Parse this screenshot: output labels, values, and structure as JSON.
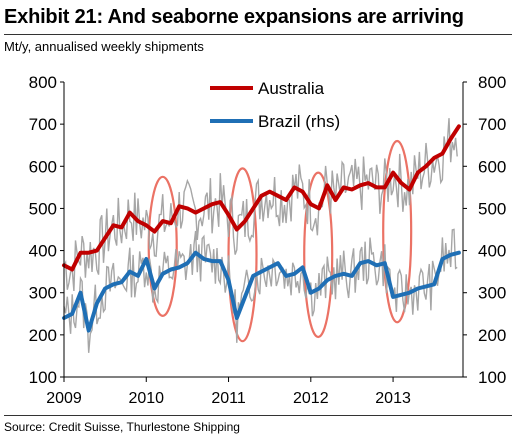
{
  "header": {
    "title": "Exhibit 21: And seaborne expansions are arriving",
    "subtitle": "Mt/y, annualised weekly shipments"
  },
  "footer": {
    "source": "Source: Credit Suisse, Thurlestone Shipping"
  },
  "chart_data": {
    "type": "line",
    "title": "Exhibit 21: And seaborne expansions are arriving",
    "subtitle": "Mt/y, annualised weekly shipments",
    "xlabel": "",
    "ylabel": "",
    "xlim": [
      2009.0,
      2013.85
    ],
    "x_ticks": [
      2009,
      2010,
      2011,
      2012,
      2013
    ],
    "x_tick_labels": [
      "2009",
      "2010",
      "2011",
      "2012",
      "2013"
    ],
    "ylim": [
      100,
      800
    ],
    "y_ticks": [
      100,
      200,
      300,
      400,
      500,
      600,
      700,
      800
    ],
    "y_tick_labels": [
      "100",
      "200",
      "300",
      "400",
      "500",
      "600",
      "700",
      "800"
    ],
    "y2lim": [
      100,
      800
    ],
    "y2_ticks": [
      100,
      200,
      300,
      400,
      500,
      600,
      700,
      800
    ],
    "y2_tick_labels": [
      "100",
      "200",
      "300",
      "400",
      "500",
      "600",
      "700",
      "800"
    ],
    "legend_position": "top-center",
    "grid": false,
    "series": [
      {
        "name": "Australia",
        "axis": "left",
        "color": "#c00000",
        "x": [
          2009.0,
          2009.1,
          2009.2,
          2009.3,
          2009.4,
          2009.5,
          2009.6,
          2009.7,
          2009.8,
          2009.9,
          2010.0,
          2010.1,
          2010.2,
          2010.3,
          2010.4,
          2010.5,
          2010.6,
          2010.7,
          2010.8,
          2010.9,
          2011.0,
          2011.1,
          2011.2,
          2011.3,
          2011.4,
          2011.5,
          2011.6,
          2011.7,
          2011.8,
          2011.9,
          2012.0,
          2012.1,
          2012.2,
          2012.3,
          2012.4,
          2012.5,
          2012.6,
          2012.7,
          2012.8,
          2012.9,
          2013.0,
          2013.1,
          2013.2,
          2013.3,
          2013.4,
          2013.5,
          2013.6,
          2013.7,
          2013.8
        ],
        "values": [
          365,
          355,
          395,
          395,
          400,
          430,
          460,
          455,
          490,
          470,
          460,
          445,
          470,
          465,
          505,
          500,
          490,
          500,
          510,
          515,
          485,
          450,
          470,
          500,
          530,
          540,
          530,
          520,
          550,
          540,
          510,
          500,
          555,
          520,
          550,
          545,
          555,
          560,
          550,
          550,
          585,
          560,
          545,
          585,
          600,
          620,
          630,
          665,
          695
        ]
      },
      {
        "name": "Brazil (rhs)",
        "axis": "right",
        "color": "#1f6fb5",
        "x": [
          2009.0,
          2009.1,
          2009.2,
          2009.3,
          2009.4,
          2009.5,
          2009.6,
          2009.7,
          2009.8,
          2009.9,
          2010.0,
          2010.1,
          2010.2,
          2010.3,
          2010.4,
          2010.5,
          2010.6,
          2010.7,
          2010.8,
          2010.9,
          2011.0,
          2011.1,
          2011.2,
          2011.3,
          2011.4,
          2011.5,
          2011.6,
          2011.7,
          2011.8,
          2011.9,
          2012.0,
          2012.1,
          2012.2,
          2012.3,
          2012.4,
          2012.5,
          2012.6,
          2012.7,
          2012.8,
          2012.9,
          2013.0,
          2013.1,
          2013.2,
          2013.3,
          2013.4,
          2013.5,
          2013.6,
          2013.7,
          2013.8
        ],
        "values": [
          240,
          250,
          300,
          210,
          275,
          310,
          320,
          325,
          350,
          340,
          380,
          310,
          345,
          355,
          360,
          370,
          395,
          380,
          375,
          375,
          330,
          240,
          290,
          340,
          350,
          360,
          370,
          340,
          345,
          360,
          300,
          310,
          330,
          340,
          345,
          340,
          370,
          375,
          365,
          370,
          290,
          295,
          300,
          310,
          315,
          320,
          380,
          390,
          395
        ]
      }
    ],
    "background_series_color": "#a6a6a6",
    "annotations": [
      {
        "type": "ellipse",
        "color": "#e8594a",
        "x_center": 2010.2,
        "x_halfwidth": 0.17,
        "y_center": 410,
        "y_halfwidth": 165
      },
      {
        "type": "ellipse",
        "color": "#e8594a",
        "x_center": 2011.17,
        "x_halfwidth": 0.17,
        "y_center": 390,
        "y_halfwidth": 205
      },
      {
        "type": "ellipse",
        "color": "#e8594a",
        "x_center": 2012.09,
        "x_halfwidth": 0.17,
        "y_center": 390,
        "y_halfwidth": 195
      },
      {
        "type": "ellipse",
        "color": "#e8594a",
        "x_center": 2013.05,
        "x_halfwidth": 0.17,
        "y_center": 445,
        "y_halfwidth": 215
      }
    ]
  }
}
